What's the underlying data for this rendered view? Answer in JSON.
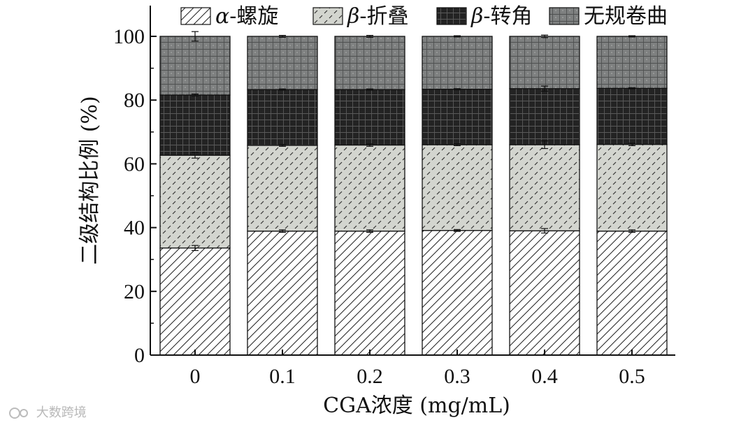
{
  "chart_data": {
    "type": "bar",
    "stacked": true,
    "categories": [
      "0",
      "0.1",
      "0.2",
      "0.3",
      "0.4",
      "0.5"
    ],
    "xlabel": "CGA浓度 (mg/mL)",
    "ylabel": "二级结构比例 (%)",
    "ylim": [
      0,
      100
    ],
    "yticks": [
      "0",
      "20",
      "40",
      "60",
      "80",
      "100"
    ],
    "legend_position": "top",
    "series": [
      {
        "name": "α-螺旋",
        "greek": "α",
        "suffix": "-螺旋",
        "pattern": "diagonal-hatch",
        "color": "#ffffff",
        "values": [
          33.6,
          38.9,
          38.9,
          39.1,
          39.0,
          38.9
        ],
        "errors": [
          0.8,
          0.4,
          0.4,
          0.3,
          0.7,
          0.4
        ]
      },
      {
        "name": "β-折叠",
        "greek": "β",
        "suffix": "-折叠",
        "pattern": "dash-dots",
        "color": "#d3d5cf",
        "values": [
          29.1,
          26.9,
          27.0,
          26.9,
          27.0,
          27.2
        ],
        "errors": [
          0.9,
          0.3,
          0.4,
          0.3,
          1.2,
          0.4
        ]
      },
      {
        "name": "β-转角",
        "greek": "β",
        "suffix": "-转角",
        "pattern": "grid",
        "color": "#232323",
        "values": [
          18.9,
          17.5,
          17.4,
          17.4,
          17.6,
          17.6
        ],
        "errors": [
          0.3,
          0.2,
          0.2,
          0.2,
          0.8,
          0.2
        ]
      },
      {
        "name": "无规卷曲",
        "greek": "",
        "suffix": "无规卷曲",
        "pattern": "grid-dots",
        "color": "#7e8080",
        "values": [
          18.4,
          16.7,
          16.7,
          16.6,
          16.4,
          16.3
        ],
        "errors": [
          1.5,
          0.3,
          0.3,
          0.2,
          0.4,
          0.2
        ]
      }
    ]
  },
  "watermark": {
    "text": "大数跨境"
  }
}
